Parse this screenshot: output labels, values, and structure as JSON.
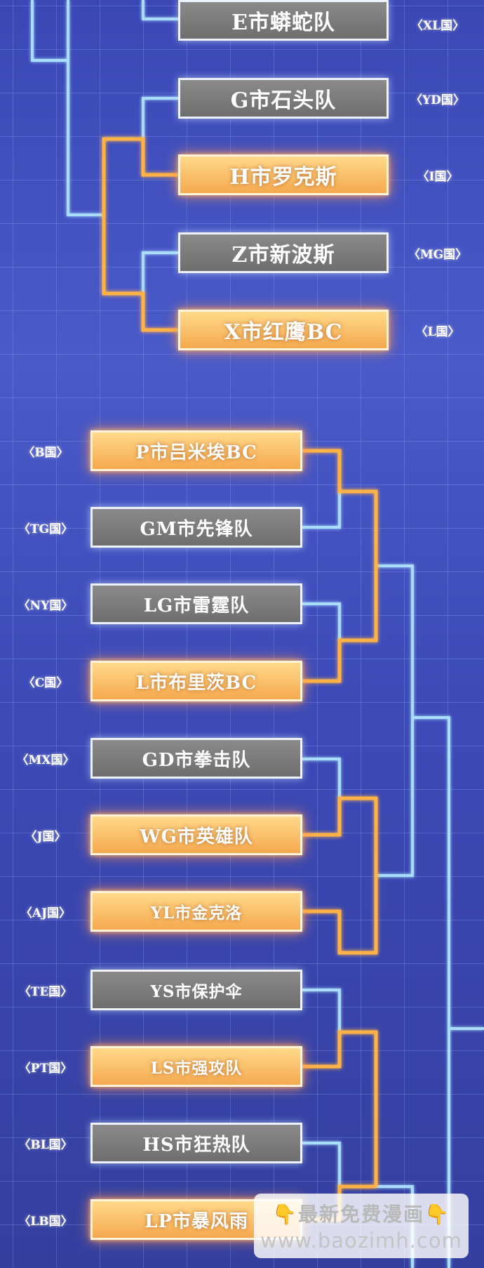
{
  "top_teams": [
    {
      "name": "E市蟒蛇队",
      "country": "〈XL国〉",
      "status": "gray"
    },
    {
      "name": "G市石头队",
      "country": "〈YD国〉",
      "status": "gray"
    },
    {
      "name": "H市罗克斯",
      "country": "〈I国〉",
      "status": "gold"
    },
    {
      "name": "Z市新波斯",
      "country": "〈MG国〉",
      "status": "gray"
    },
    {
      "name": "X市红鹰BC",
      "country": "〈L国〉",
      "status": "gold"
    }
  ],
  "bottom_teams": [
    {
      "name": "P市吕米埃BC",
      "country": "〈B国〉",
      "status": "gold"
    },
    {
      "name": "GM市先锋队",
      "country": "〈TG国〉",
      "status": "gray"
    },
    {
      "name": "LG市雷霆队",
      "country": "〈NY国〉",
      "status": "gray"
    },
    {
      "name": "L市布里茨BC",
      "country": "〈C国〉",
      "status": "gold"
    },
    {
      "name": "GD市拳击队",
      "country": "〈MX国〉",
      "status": "gray"
    },
    {
      "name": "WG市英雄队",
      "country": "〈J国〉",
      "status": "gold"
    },
    {
      "name": "YL市金克洛",
      "country": "〈AJ国〉",
      "status": "gold"
    },
    {
      "name": "YS市保护伞",
      "country": "〈TE国〉",
      "status": "gray"
    },
    {
      "name": "LS市强攻队",
      "country": "〈PT国〉",
      "status": "gold"
    },
    {
      "name": "HS市狂热队",
      "country": "〈BL国〉",
      "status": "gray"
    },
    {
      "name": "LP市暴风雨",
      "country": "〈LB国〉",
      "status": "gold"
    }
  ],
  "watermark": {
    "line1": "最新免费漫画",
    "line2": "www.baozimh.com",
    "icon": "pointing-down-hand-icon"
  },
  "colors": {
    "winner_line": "#ffb347",
    "loser_line": "#a8ddff",
    "winner_box": "#f8b862",
    "loser_box": "#7c7c7c"
  }
}
